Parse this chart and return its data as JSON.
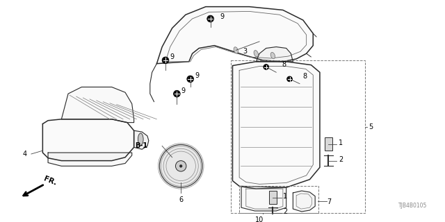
{
  "bg_color": "#ffffff",
  "diagram_code": "TJB4B0105",
  "line_color": "#2a2a2a",
  "label_color": "#000000",
  "screw_color": "#111111",
  "dash_color": "#555555"
}
